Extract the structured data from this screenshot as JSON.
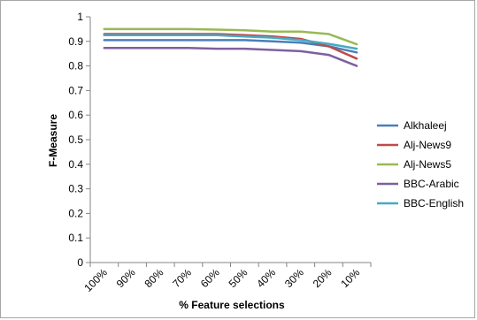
{
  "chart_data": {
    "type": "line",
    "title": "",
    "xlabel": "% Feature selections",
    "ylabel": "F-Measure",
    "categories": [
      "100%",
      "90%",
      "80%",
      "70%",
      "60%",
      "50%",
      "40%",
      "30%",
      "20%",
      "10%"
    ],
    "ylim": [
      0,
      1
    ],
    "yticks": [
      "0",
      "0.1",
      "0.2",
      "0.3",
      "0.4",
      "0.5",
      "0.6",
      "0.7",
      "0.8",
      "0.9",
      "1"
    ],
    "grid": false,
    "legend_position": "right",
    "series": [
      {
        "name": "Alkhaleej",
        "color": "#4a7ebb",
        "values": [
          0.905,
          0.905,
          0.905,
          0.905,
          0.905,
          0.905,
          0.9,
          0.895,
          0.88,
          0.855
        ]
      },
      {
        "name": "Alj-News9",
        "color": "#be4b48",
        "values": [
          0.93,
          0.93,
          0.93,
          0.93,
          0.93,
          0.925,
          0.92,
          0.91,
          0.88,
          0.83
        ]
      },
      {
        "name": "Alj-News5",
        "color": "#98b954",
        "values": [
          0.95,
          0.95,
          0.95,
          0.95,
          0.948,
          0.945,
          0.94,
          0.94,
          0.93,
          0.888
        ]
      },
      {
        "name": "BBC-Arabic",
        "color": "#7d60a0",
        "values": [
          0.873,
          0.873,
          0.873,
          0.873,
          0.87,
          0.87,
          0.865,
          0.86,
          0.845,
          0.8
        ]
      },
      {
        "name": "BBC-English",
        "color": "#46aac5",
        "values": [
          0.925,
          0.925,
          0.925,
          0.925,
          0.925,
          0.92,
          0.915,
          0.905,
          0.89,
          0.87
        ]
      }
    ]
  }
}
